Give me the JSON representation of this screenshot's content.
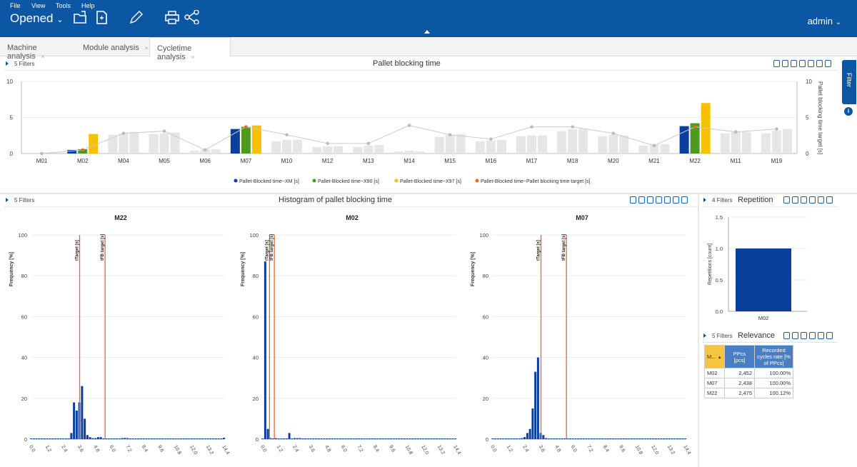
{
  "menu": {
    "file": "File",
    "view": "View",
    "tools": "Tools",
    "help": "Help"
  },
  "toolbar": {
    "opened_label": "Opened"
  },
  "user": {
    "name": "admin"
  },
  "tabs": [
    {
      "label": "Machine analysis",
      "close": "×"
    },
    {
      "label": "Module analysis",
      "close": "×"
    },
    {
      "label": "Cycletime analysis",
      "close": "×"
    }
  ],
  "side": {
    "filter_label": "Filter"
  },
  "panels": {
    "top": {
      "filters": "5 Filters",
      "title": "Pallet blocking time"
    },
    "hist": {
      "filters": "5 Filters",
      "title": "Histogram of pallet blocking time"
    },
    "rep": {
      "filters": "4 Filters",
      "title": "Repetition"
    },
    "rel": {
      "filters": "5 Filters",
      "title": "Relevance"
    }
  },
  "relevance_table": {
    "headers": [
      "M...",
      "PPcs [pcs]",
      "Recorded cycles rate [% of PPcs]"
    ],
    "rows": [
      [
        "M02",
        "2,452",
        "100.00%"
      ],
      [
        "M07",
        "2,438",
        "100.00%"
      ],
      [
        "M22",
        "2,475",
        "100.12%"
      ]
    ]
  },
  "colors": {
    "xm": "#0b3f9e",
    "x90": "#4e9a1f",
    "x97": "#f6c100",
    "target": "#e06a2a",
    "grey": "#e6e6e6",
    "brand": "#0b57a4"
  },
  "chart_data": [
    {
      "type": "bar",
      "title": "Pallet blocking time",
      "ylabel": "",
      "y2label": "Pallet blocking time target [s]",
      "ylim": [
        0,
        10
      ],
      "yticks": [
        0,
        5,
        10
      ],
      "categories": [
        "M01",
        "M02",
        "M04",
        "M05",
        "M06",
        "M07",
        "M10",
        "M12",
        "M13",
        "M14",
        "M15",
        "M16",
        "M17",
        "M18",
        "M20",
        "M21",
        "M22",
        "M11",
        "M19"
      ],
      "series": [
        {
          "name": "Pallet-Blocked time~XM [s]",
          "values": [
            0,
            0.5,
            2.6,
            2.7,
            0.4,
            3.4,
            1.7,
            0.9,
            0.9,
            0.3,
            2.3,
            1.7,
            2.4,
            3.1,
            2.4,
            1.1,
            3.8,
            2.8,
            2.8
          ]
        },
        {
          "name": "Pallet-Blocked time~X90 [s]",
          "values": [
            0,
            0.6,
            2.8,
            2.8,
            0.6,
            3.7,
            1.9,
            1.0,
            1.1,
            0.4,
            2.6,
            1.8,
            2.5,
            3.4,
            2.6,
            1.3,
            4.2,
            3.0,
            3.2
          ]
        },
        {
          "name": "Pallet-Blocked time~X97 [s]",
          "values": [
            0,
            2.7,
            3.0,
            2.9,
            0.6,
            3.9,
            1.9,
            1.0,
            1.2,
            0.3,
            2.7,
            1.9,
            2.5,
            3.5,
            2.5,
            1.3,
            7.0,
            3.0,
            3.4
          ]
        },
        {
          "name": "Pallet-Blocked time~Pallet blocking time target [s]",
          "type": "line",
          "values": [
            0,
            0.5,
            2.8,
            3.1,
            0.5,
            3.7,
            2.6,
            1.4,
            1.4,
            3.9,
            2.6,
            2.0,
            3.7,
            3.7,
            2.8,
            1.1,
            3.7,
            3.0,
            3.4
          ]
        }
      ],
      "highlighted": [
        "M02",
        "M07",
        "M22"
      ],
      "legend": "bottom"
    },
    {
      "type": "bar",
      "title": "M22",
      "ylabel": "Frequency [%]",
      "ylim": [
        0,
        100
      ],
      "yticks": [
        0,
        20,
        40,
        60,
        80,
        100
      ],
      "xticks": [
        "0.0",
        "1.2",
        "2.4",
        "3.6",
        "4.8",
        "6.0",
        "7.2",
        "8.4",
        "9.6",
        "10.8",
        "12.0",
        "13.2",
        "14.4"
      ],
      "xlim": [
        0,
        14.4
      ],
      "bins": [
        [
          3.0,
          3
        ],
        [
          3.2,
          18
        ],
        [
          3.4,
          14
        ],
        [
          3.6,
          18
        ],
        [
          3.8,
          26
        ],
        [
          4.0,
          10
        ],
        [
          4.2,
          2
        ],
        [
          4.4,
          1
        ],
        [
          4.6,
          0.5
        ],
        [
          4.8,
          0.5
        ],
        [
          5.0,
          1
        ],
        [
          5.2,
          1
        ],
        [
          6.8,
          0.5
        ],
        [
          7.0,
          0.6
        ],
        [
          7.2,
          0.5
        ],
        [
          14.4,
          0.7
        ]
      ],
      "vlines": [
        {
          "label": "tTarget [s]",
          "x": 3.6
        },
        {
          "label": "tFB target [s]",
          "x": 5.5
        }
      ]
    },
    {
      "type": "bar",
      "title": "M02",
      "ylabel": "Frequency [%]",
      "ylim": [
        0,
        100
      ],
      "yticks": [
        0,
        20,
        40,
        60,
        80,
        100
      ],
      "xticks": [
        "0.0",
        "1.2",
        "2.4",
        "3.6",
        "4.8",
        "6.0",
        "7.2",
        "8.4",
        "9.6",
        "10.8",
        "12.0",
        "13.2",
        "14.4"
      ],
      "xlim": [
        0,
        14.4
      ],
      "bins": [
        [
          0.2,
          87
        ],
        [
          0.4,
          5
        ],
        [
          0.6,
          0.5
        ],
        [
          1.0,
          0.5
        ],
        [
          2.0,
          3
        ],
        [
          2.4,
          0.5
        ],
        [
          2.6,
          0.5
        ],
        [
          2.8,
          0.5
        ]
      ],
      "vlines": [
        {
          "label": "tTarget [s]",
          "x": 0.5
        },
        {
          "label": "tFB target [s]",
          "x": 0.7
        }
      ]
    },
    {
      "type": "bar",
      "title": "M07",
      "ylabel": "Frequency [%]",
      "ylim": [
        0,
        100
      ],
      "yticks": [
        0,
        20,
        40,
        60,
        80,
        100
      ],
      "xticks": [
        "0.0",
        "1.2",
        "2.4",
        "3.6",
        "4.8",
        "6.0",
        "7.2",
        "8.4",
        "9.6",
        "10.8",
        "12.0",
        "13.2",
        "14.4"
      ],
      "xlim": [
        0,
        14.4
      ],
      "bins": [
        [
          2.2,
          0.5
        ],
        [
          2.4,
          1
        ],
        [
          2.6,
          3
        ],
        [
          2.8,
          5
        ],
        [
          3.0,
          15
        ],
        [
          3.2,
          33
        ],
        [
          3.4,
          40
        ],
        [
          3.6,
          3
        ],
        [
          3.8,
          2
        ],
        [
          4.0,
          0.5
        ]
      ],
      "vlines": [
        {
          "label": "tTarget [s]",
          "x": 3.6
        },
        {
          "label": "tFB target [s]",
          "x": 5.5
        }
      ]
    },
    {
      "type": "bar",
      "title": "Repetition",
      "ylabel": "Repetitions [count]",
      "ylim": [
        0,
        1.5
      ],
      "yticks": [
        "0.0",
        "0.5",
        "1.0",
        "1.5"
      ],
      "categories": [
        "M02"
      ],
      "values": [
        1
      ]
    }
  ]
}
